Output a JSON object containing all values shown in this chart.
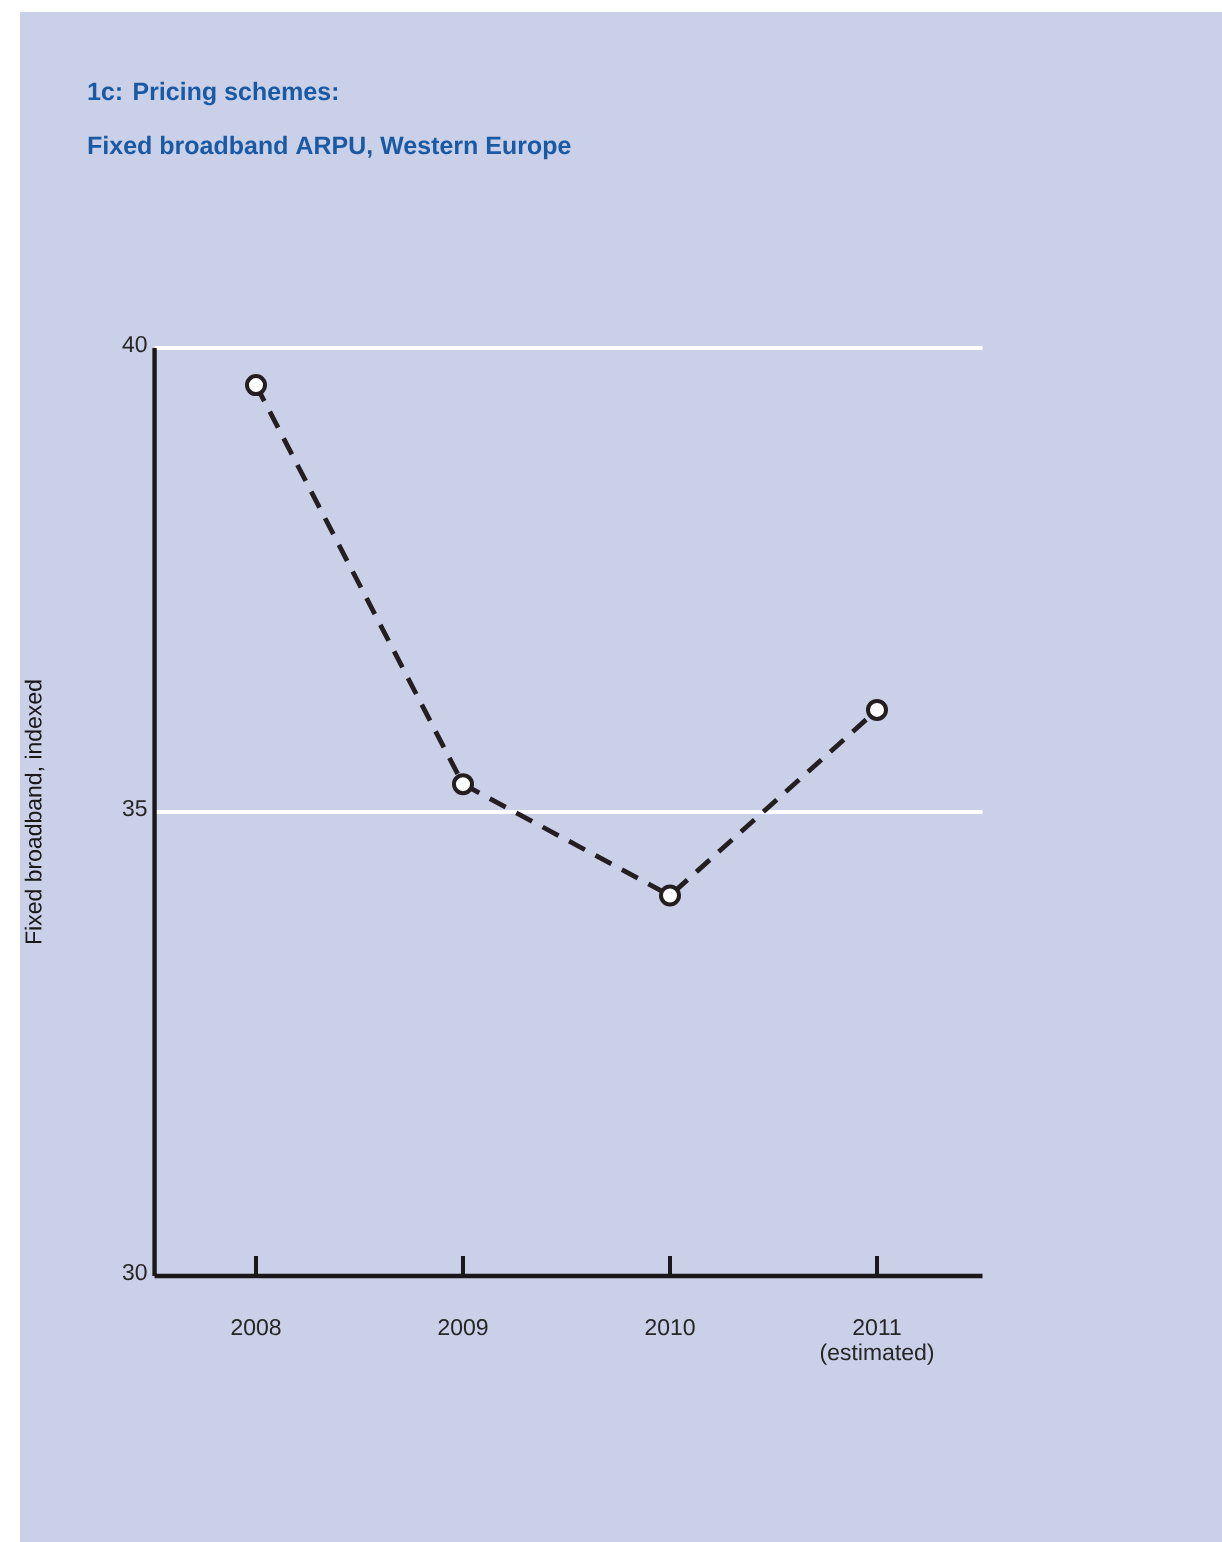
{
  "chart_data": {
    "type": "line",
    "title": "1c: Pricing schemes:",
    "subtitle": "Fixed broadband ARPU, Western Europe",
    "ylabel": "Fixed broadband, indexed",
    "categories": [
      "2008",
      "2009",
      "2010",
      "2011 (estimated)"
    ],
    "series": [
      {
        "color": "#231f20",
        "values": [
          39.6,
          35.3,
          34.1,
          36.1
        ]
      }
    ],
    "ylim": [
      30,
      40
    ],
    "yticks": [
      30,
      35,
      40
    ],
    "grid": "y",
    "marker": "circle",
    "line_style": "dashed"
  }
}
